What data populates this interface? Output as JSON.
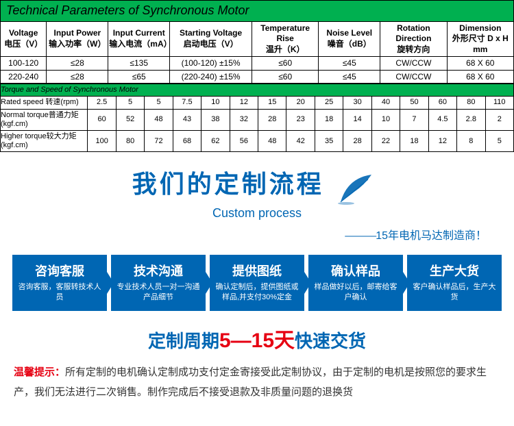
{
  "params_table": {
    "header": "Technical Parameters of Synchronous Motor",
    "columns": [
      {
        "en": "Voltage",
        "cn": "电压（V）"
      },
      {
        "en": "Input Power",
        "cn": "输入功率（W）"
      },
      {
        "en": "Input Current",
        "cn": "输入电流（mA）"
      },
      {
        "en": "Starting Voltage",
        "cn": "启动电压（V）"
      },
      {
        "en": "Temperature Rise",
        "cn": "温升（K）"
      },
      {
        "en": "Noise Level",
        "cn": "噪音（dB）"
      },
      {
        "en": "Rotation Direction",
        "cn": "旋转方向"
      },
      {
        "en": "Dimension",
        "cn": "外形尺寸 D x H mm"
      }
    ],
    "rows": [
      [
        "100-120",
        "≤28",
        "≤135",
        "(100-120) ±15%",
        "≤60",
        "≤45",
        "CW/CCW",
        "68 X 60"
      ],
      [
        "220-240",
        "≤28",
        "≤65",
        "(220-240) ±15%",
        "≤60",
        "≤45",
        "CW/CCW",
        "68 X 60"
      ]
    ]
  },
  "torque_table": {
    "header": "Torque and Speed of Synchronous Motor",
    "row_labels": [
      "Rated speed 转速(rpm)",
      "Normal torque普通力矩(kgf.cm)",
      "Higher torque较大力矩(kgf.cm)"
    ],
    "speeds": [
      "2.5",
      "5",
      "5",
      "7.5",
      "10",
      "12",
      "15",
      "20",
      "25",
      "30",
      "40",
      "50",
      "60",
      "80",
      "110"
    ],
    "normal": [
      "60",
      "52",
      "48",
      "43",
      "38",
      "32",
      "28",
      "23",
      "18",
      "14",
      "10",
      "7",
      "4.5",
      "2.8",
      "2"
    ],
    "higher": [
      "100",
      "80",
      "72",
      "68",
      "62",
      "56",
      "48",
      "42",
      "35",
      "28",
      "22",
      "18",
      "12",
      "8",
      "5"
    ]
  },
  "custom": {
    "script": "我们的定制流程",
    "sub": "Custom process",
    "tagline_dash": "———",
    "tagline": "15年电机马达制造商！"
  },
  "steps": [
    {
      "title": "咨询客服",
      "desc": "咨询客服，客服转技术人员"
    },
    {
      "title": "技术沟通",
      "desc": "专业技术人员一对一沟通产品细节"
    },
    {
      "title": "提供图纸",
      "desc": "确认定制后，提供图纸或样品,并支付30%定金"
    },
    {
      "title": "确认样品",
      "desc": "样品做好以后，邮寄给客户确认"
    },
    {
      "title": "生产大货",
      "desc": "客户确认样品后，生产大货"
    }
  ],
  "cycle": {
    "pre": "定制周期",
    "num": "5—15",
    "unit": "天",
    "post": "快速交货"
  },
  "notice": {
    "label": "温馨提示：",
    "text": "所有定制的电机确认定制成功支付定金寄接受此定制协议，由于定制的电机是按照您的要求生产，我们无法进行二次销售。制作完成后不接受退款及非质量问题的退换货"
  },
  "colors": {
    "green": "#00b050",
    "blue": "#0066b3",
    "red": "#e60012"
  }
}
